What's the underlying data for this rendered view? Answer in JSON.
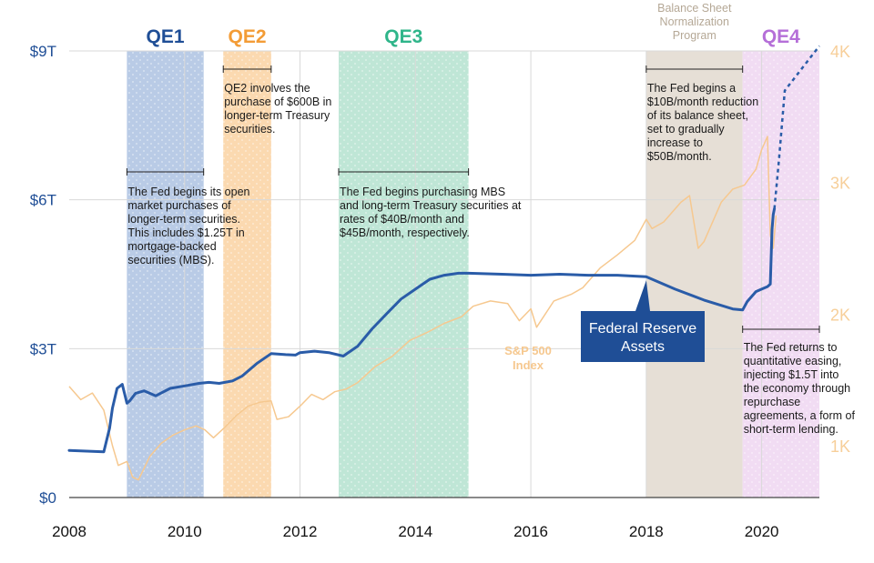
{
  "chart_data": {
    "type": "line",
    "x_range": [
      2008,
      2021
    ],
    "y_left_ticks": [
      {
        "value": 0,
        "label": "$0"
      },
      {
        "value": 3,
        "label": "$3T"
      },
      {
        "value": 6,
        "label": "$6T"
      },
      {
        "value": 9,
        "label": "$9T"
      }
    ],
    "y_right_ticks": [
      {
        "value": 1000,
        "label": "1K"
      },
      {
        "value": 2000,
        "label": "2K"
      },
      {
        "value": 3000,
        "label": "3K"
      },
      {
        "value": 4000,
        "label": "4K"
      }
    ],
    "x_ticks": [
      {
        "value": 2008,
        "label": "2008"
      },
      {
        "value": 2010,
        "label": "2010"
      },
      {
        "value": 2012,
        "label": "2012"
      },
      {
        "value": 2014,
        "label": "2014"
      },
      {
        "value": 2016,
        "label": "2016"
      },
      {
        "value": 2018,
        "label": "2018"
      },
      {
        "value": 2020,
        "label": "2020"
      }
    ],
    "periods": [
      {
        "label": "QE1",
        "start": 2009.0,
        "end": 2010.33,
        "color": "#b9cbe6",
        "label_color": "#1f4e96",
        "dotted": true
      },
      {
        "label": "QE2",
        "start": 2010.67,
        "end": 2011.5,
        "color": "#fbd9b0",
        "label_color": "#f39c36",
        "dotted": true
      },
      {
        "label": "QE3",
        "start": 2012.67,
        "end": 2014.92,
        "color": "#bfe6d6",
        "label_color": "#2fb58a",
        "dotted": true
      },
      {
        "label": "Balance Sheet Normalization Program",
        "start": 2018.0,
        "end": 2019.67,
        "color": "#e6dfd6",
        "label_color": "#b5a896",
        "dotted": false
      },
      {
        "label": "QE4",
        "start": 2019.67,
        "end": 2021.0,
        "color": "#f1dcf3",
        "label_color": "#b56fd8",
        "dotted": true
      }
    ],
    "series": [
      {
        "name": "Federal Reserve Assets",
        "axis": "left",
        "color": "#2a5ca8",
        "x": [
          2008.0,
          2008.6,
          2008.7,
          2008.75,
          2008.83,
          2008.92,
          2009.0,
          2009.05,
          2009.15,
          2009.3,
          2009.5,
          2009.75,
          2010.0,
          2010.25,
          2010.42,
          2010.6,
          2010.83,
          2011.0,
          2011.25,
          2011.5,
          2011.75,
          2011.92,
          2012.0,
          2012.25,
          2012.5,
          2012.75,
          2013.0,
          2013.25,
          2013.5,
          2013.75,
          2014.0,
          2014.25,
          2014.5,
          2014.75,
          2014.92,
          2015.5,
          2016.0,
          2016.5,
          2017.0,
          2017.5,
          2018.0,
          2018.5,
          2019.0,
          2019.5,
          2019.67,
          2019.75,
          2019.9,
          2020.0,
          2020.1,
          2020.15,
          2020.18,
          2020.2,
          2020.22
        ],
        "y": [
          0.95,
          0.92,
          1.4,
          1.8,
          2.2,
          2.28,
          1.9,
          1.95,
          2.1,
          2.15,
          2.05,
          2.2,
          2.25,
          2.3,
          2.32,
          2.3,
          2.35,
          2.45,
          2.7,
          2.9,
          2.88,
          2.87,
          2.92,
          2.95,
          2.92,
          2.85,
          3.05,
          3.4,
          3.7,
          4.0,
          4.2,
          4.4,
          4.48,
          4.52,
          4.52,
          4.5,
          4.48,
          4.5,
          4.48,
          4.48,
          4.45,
          4.2,
          3.98,
          3.8,
          3.78,
          3.95,
          4.15,
          4.2,
          4.25,
          4.3,
          5.4,
          5.7,
          5.82
        ],
        "dashed_extension": {
          "x": [
            2020.22,
            2020.3,
            2020.4,
            2020.6,
            2020.8,
            2021.0
          ],
          "y": [
            5.82,
            6.8,
            8.2,
            8.5,
            8.8,
            9.1
          ]
        }
      },
      {
        "name": "S&P 500 Index",
        "axis": "right",
        "color": "#f6c88f",
        "x": [
          2008.0,
          2008.2,
          2008.4,
          2008.6,
          2008.75,
          2008.85,
          2009.0,
          2009.1,
          2009.2,
          2009.4,
          2009.6,
          2009.8,
          2010.0,
          2010.2,
          2010.35,
          2010.5,
          2010.7,
          2010.9,
          2011.1,
          2011.3,
          2011.5,
          2011.6,
          2011.8,
          2012.0,
          2012.2,
          2012.4,
          2012.6,
          2012.8,
          2013.0,
          2013.3,
          2013.6,
          2013.9,
          2014.2,
          2014.5,
          2014.8,
          2015.0,
          2015.3,
          2015.6,
          2015.8,
          2016.0,
          2016.1,
          2016.4,
          2016.7,
          2016.9,
          2017.2,
          2017.5,
          2017.8,
          2018.0,
          2018.1,
          2018.3,
          2018.6,
          2018.75,
          2018.9,
          2019.0,
          2019.3,
          2019.5,
          2019.7,
          2019.9,
          2020.0,
          2020.1,
          2020.15,
          2020.2,
          2020.25
        ],
        "y": [
          1450,
          1350,
          1400,
          1270,
          1000,
          850,
          880,
          760,
          740,
          920,
          1020,
          1080,
          1120,
          1150,
          1120,
          1060,
          1140,
          1230,
          1300,
          1330,
          1340,
          1200,
          1220,
          1300,
          1390,
          1350,
          1410,
          1430,
          1480,
          1600,
          1680,
          1800,
          1860,
          1930,
          1980,
          2060,
          2100,
          2080,
          1950,
          2040,
          1900,
          2100,
          2150,
          2200,
          2350,
          2450,
          2560,
          2720,
          2650,
          2700,
          2850,
          2900,
          2500,
          2550,
          2850,
          2950,
          2980,
          3100,
          3250,
          3350,
          2600,
          2500,
          2750
        ]
      }
    ],
    "series_labels": [
      {
        "text": "Federal Reserve Assets",
        "lines": [
          "Federal Reserve",
          "Assets"
        ]
      },
      {
        "text": "S&P 500 Index",
        "lines": [
          "S&P 500",
          "Index"
        ]
      }
    ]
  },
  "annotations": [
    {
      "id": "qe1-note",
      "start": 2009.0,
      "end": 2010.33,
      "text": "The Fed begins its open market purchases of longer-term securities. This includes $1.25T in mortgage-backed securities (MBS)."
    },
    {
      "id": "qe2-note",
      "start": 2010.67,
      "end": 2011.5,
      "text": "QE2 involves the purchase of $600B in longer-term Treasury securities."
    },
    {
      "id": "qe3-note",
      "start": 2012.67,
      "end": 2014.92,
      "text": "The Fed begins purchasing MBS and long-term Treasury securities at rates of $40B/month and $45B/month, respectively."
    },
    {
      "id": "bsn-note",
      "start": 2018.0,
      "end": 2019.67,
      "text": "The Fed begins a $10B/month reduction of its balance sheet, set to gradually increase to $50B/month."
    },
    {
      "id": "qe4-note",
      "start": 2019.67,
      "end": 2021.0,
      "text": "The Fed returns to quantitative easing, injecting $1.5T into the economy through repurchase agreements, a form of short-term lending."
    }
  ],
  "colors": {
    "left_axis_text": "#1f4e96",
    "right_axis_text": "#f7cf9a",
    "grid": "#d9d9d9",
    "fed_label_bg": "#1f4e96",
    "sp_label": "#f6c88f"
  }
}
